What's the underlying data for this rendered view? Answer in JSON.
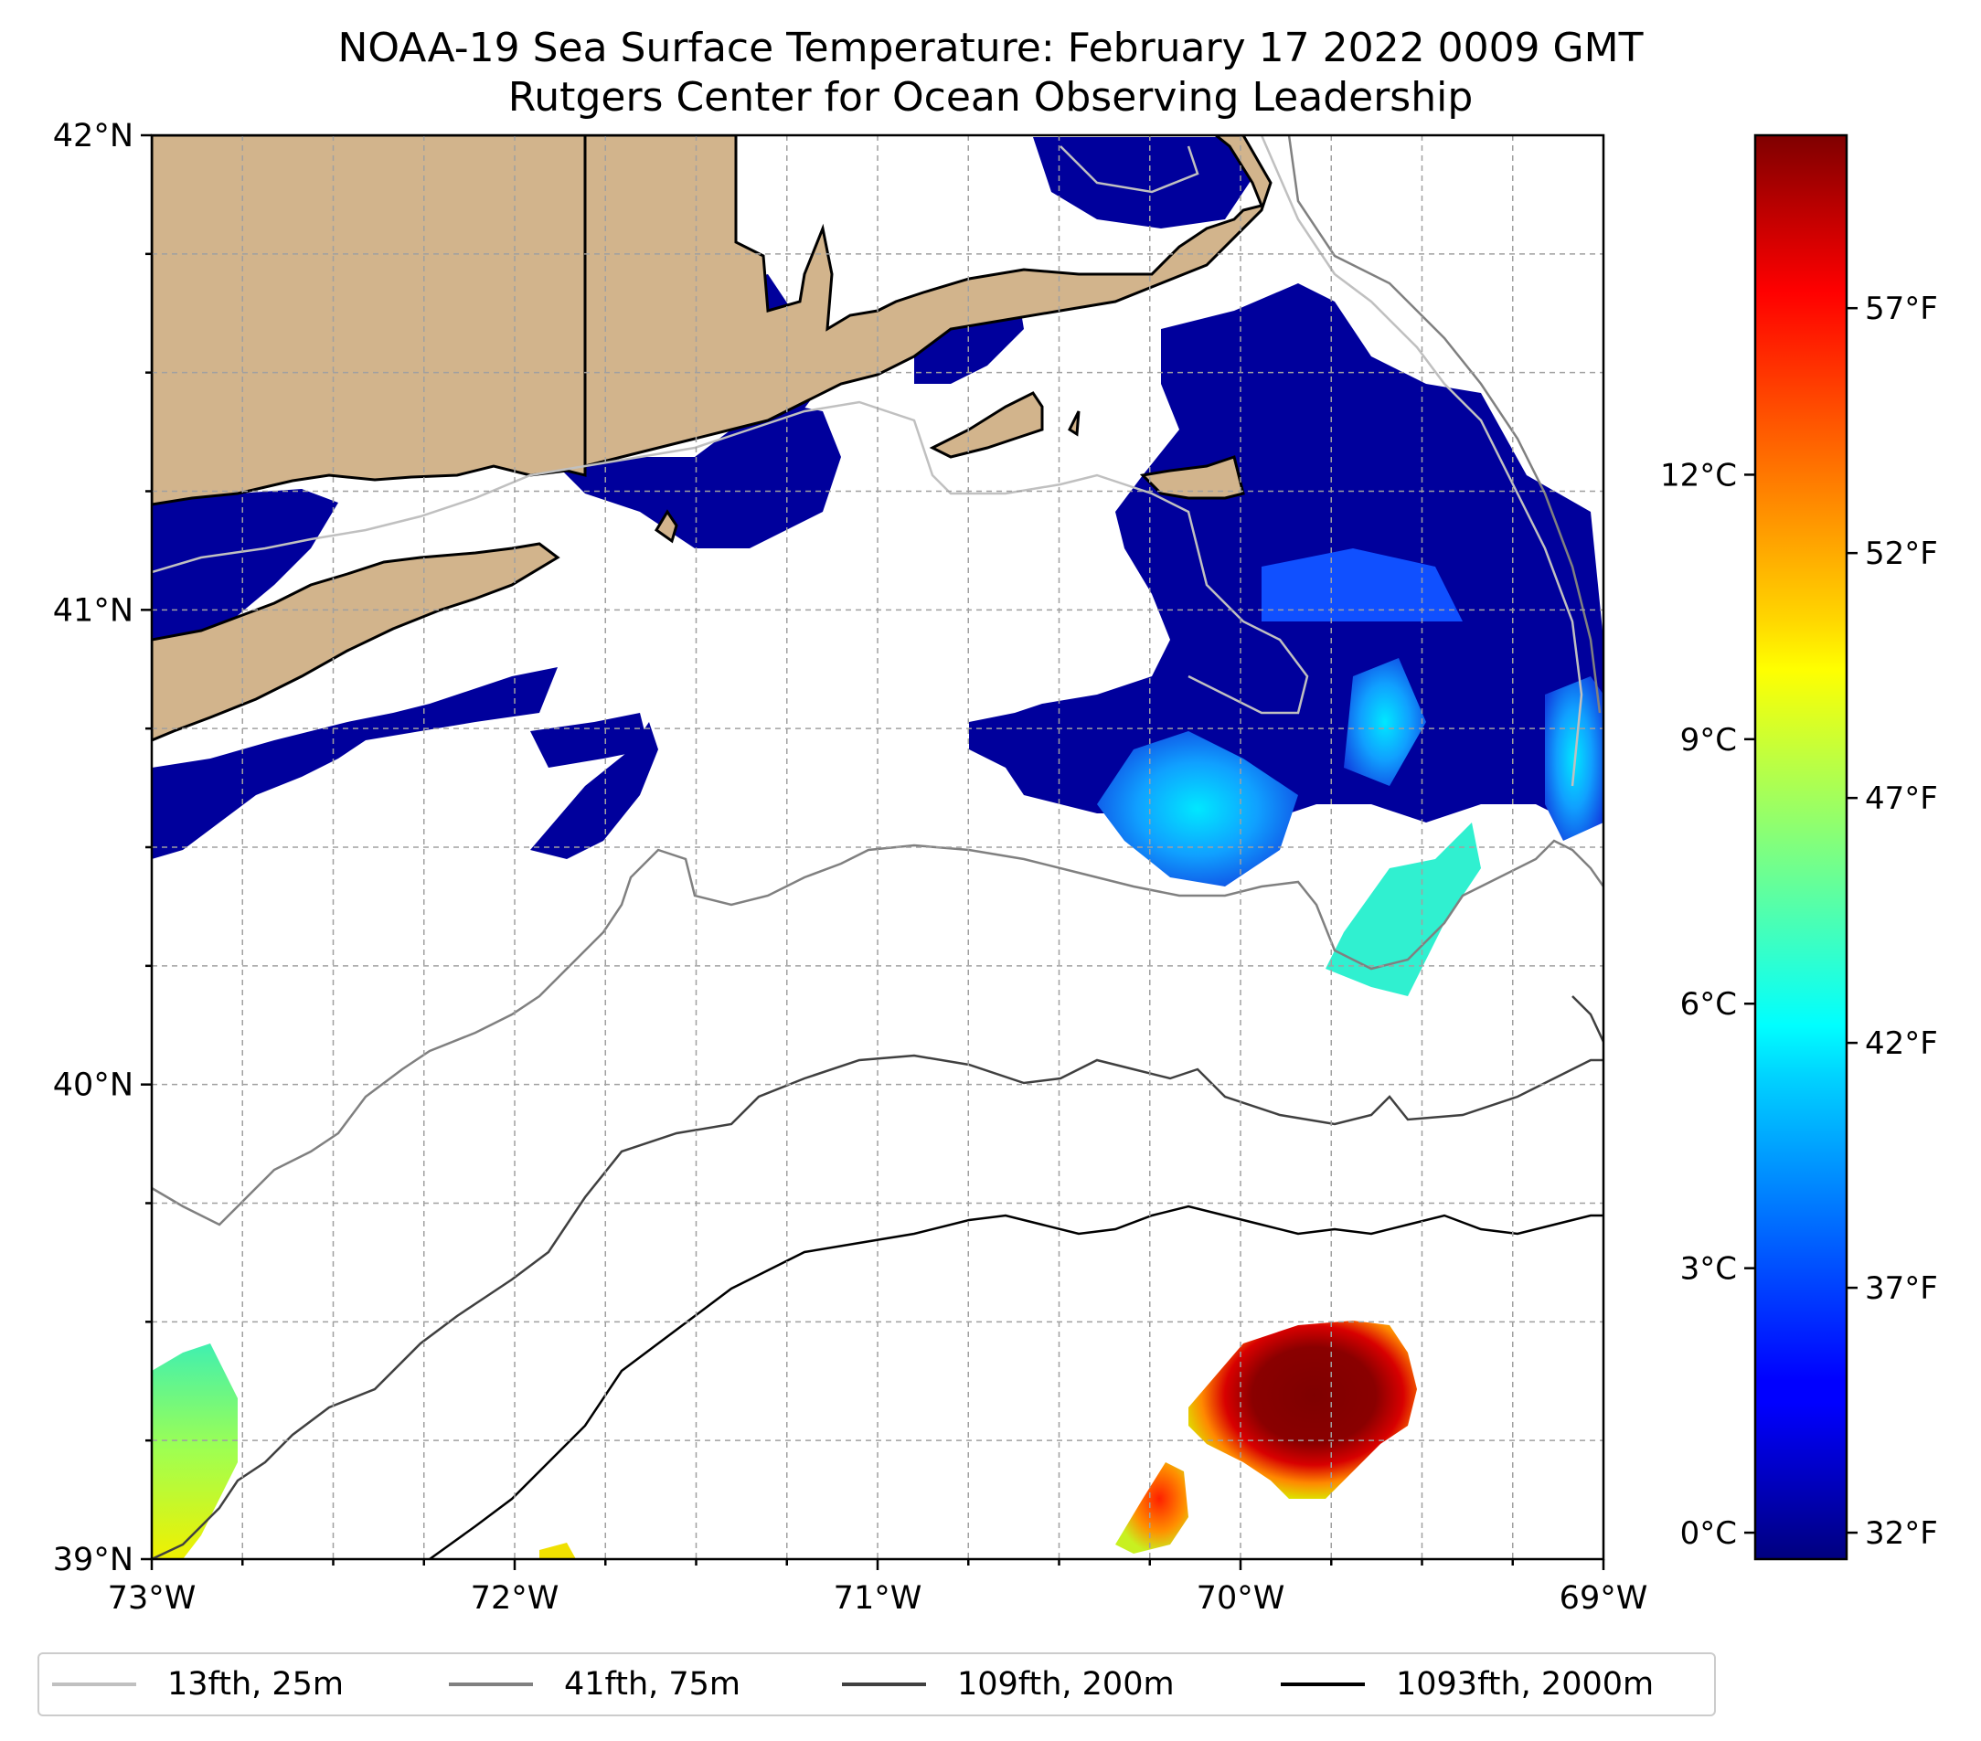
{
  "title": {
    "line1": "NOAA-19 Sea Surface Temperature: February 17 2022 0009 GMT",
    "line2": "Rutgers Center for Ocean Observing Leadership"
  },
  "map": {
    "lon_range": [
      -73,
      -69
    ],
    "lat_range": [
      39,
      42
    ],
    "x_ticks": [
      {
        "lon": -73,
        "label": "73°W"
      },
      {
        "lon": -72,
        "label": "72°W"
      },
      {
        "lon": -71,
        "label": "71°W"
      },
      {
        "lon": -70,
        "label": "70°W"
      },
      {
        "lon": -69,
        "label": "69°W"
      }
    ],
    "y_ticks": [
      {
        "lat": 42,
        "label": "42°N"
      },
      {
        "lat": 41,
        "label": "41°N"
      },
      {
        "lat": 40,
        "label": "40°N"
      },
      {
        "lat": 39,
        "label": "39°N"
      }
    ],
    "grid": "dashed, every 0.25°",
    "land_color": "#d2b48c",
    "no_data_color": "#ffffff"
  },
  "colorbar": {
    "min_c": -0.3,
    "max_c": 15.85,
    "colormap": "jet",
    "celsius_ticks": [
      {
        "value": 0,
        "label": "0°C"
      },
      {
        "value": 3,
        "label": "3°C"
      },
      {
        "value": 6,
        "label": "6°C"
      },
      {
        "value": 9,
        "label": "9°C"
      },
      {
        "value": 12,
        "label": "12°C"
      }
    ],
    "fahrenheit_ticks": [
      {
        "value": 32,
        "label": "32°F"
      },
      {
        "value": 37,
        "label": "37°F"
      },
      {
        "value": 42,
        "label": "42°F"
      },
      {
        "value": 47,
        "label": "47°F"
      },
      {
        "value": 52,
        "label": "52°F"
      },
      {
        "value": 57,
        "label": "57°F"
      }
    ]
  },
  "legend": {
    "placement": "bottom",
    "items": [
      {
        "label": "13fth, 25m",
        "color": "#c0c0c0"
      },
      {
        "label": "41fth, 75m",
        "color": "#808080"
      },
      {
        "label": "109fth, 200m",
        "color": "#404040"
      },
      {
        "label": "1093fth, 2000m",
        "color": "#000000"
      }
    ]
  }
}
